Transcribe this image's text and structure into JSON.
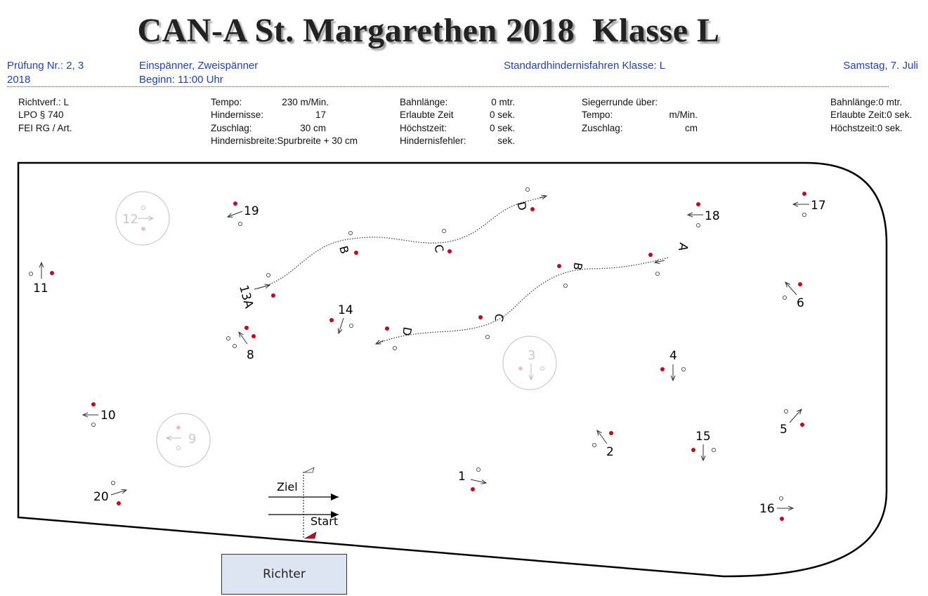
{
  "header": {
    "title": "CAN-A St. Margarethen 2018  Klasse L",
    "pruefung_line1": "Prüfung Nr.: 2, 3",
    "pruefung_line2": "2018",
    "category_line1": "Einspänner, Zweispänner",
    "category_line2": "Beginn: 11:00 Uhr",
    "competition": "Standardhindernisfahren Klasse: L",
    "date": "Samstag, 7. Juli"
  },
  "rules": {
    "col1": [
      "Richtverf.: L",
      "LPO § 740",
      "FEI RG / Art."
    ],
    "col2": [
      {
        "label": "Tempo:",
        "value": "230 m/Min."
      },
      {
        "label": "Hindernisse:",
        "value": "17"
      },
      {
        "label": "Zuschlag:",
        "value": "30 cm"
      },
      {
        "label": "Hindernisbreite:",
        "value": "Spurbreite + 30 cm"
      }
    ],
    "col3": [
      {
        "label": "Bahnlänge:",
        "value": "0 mtr."
      },
      {
        "label": "Erlaubte Zeit",
        "value": "0 sek."
      },
      {
        "label": "Höchstzeit:",
        "value": "0 sek."
      },
      {
        "label": "Hindernisfehler:",
        "value": "sek."
      }
    ],
    "col4": [
      {
        "label": "Siegerrunde über:",
        "value": ""
      },
      {
        "label": "Tempo:",
        "value": "m/Min."
      },
      {
        "label": "Zuschlag:",
        "value": "cm"
      }
    ],
    "col5": [
      {
        "label": "Bahnlänge:",
        "value": "0 mtr."
      },
      {
        "label": "Erlaubte Zeit:",
        "value": "0 sek."
      },
      {
        "label": "Höchstzeit:",
        "value": "0 sek."
      }
    ]
  },
  "course": {
    "obstacle_labels": [
      "1",
      "2",
      "3",
      "4",
      "5",
      "6",
      "8",
      "9",
      "10",
      "11",
      "12",
      "13A",
      "14",
      "15",
      "16",
      "17",
      "18",
      "19",
      "20"
    ],
    "multi_labels_1": [
      "13A",
      "B",
      "C",
      "D"
    ],
    "multi_labels_2": [
      "A",
      "B",
      "C",
      "D"
    ],
    "finish_label": "Ziel",
    "start_label": "Start",
    "judge_label": "Richter",
    "colors": {
      "red": "#d0021b",
      "arrow": "#333333",
      "ghost": "#c8c8c8"
    }
  }
}
